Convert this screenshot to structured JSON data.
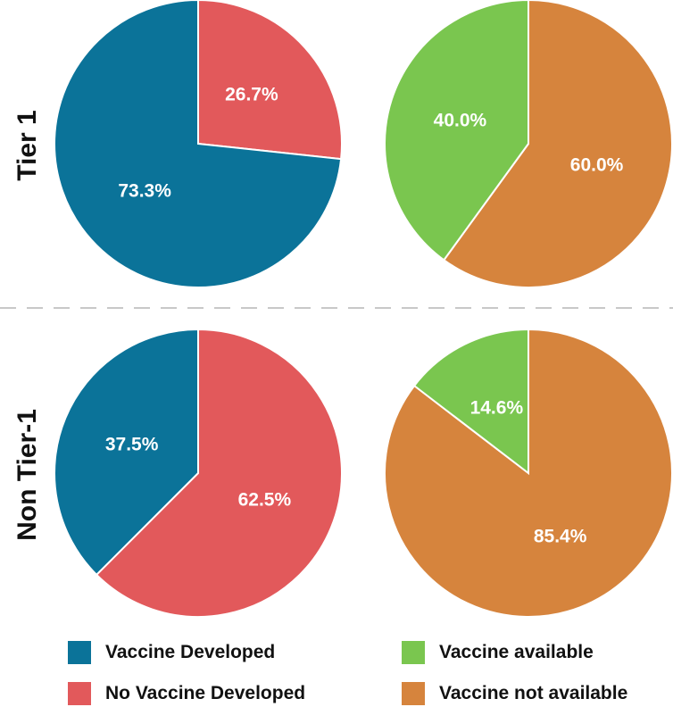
{
  "chart_data": [
    {
      "type": "pie",
      "row": "Tier 1",
      "slices": [
        {
          "label": "Vaccine Developed",
          "value": 73.3,
          "text": "73.3%",
          "color": "#0b7399"
        },
        {
          "label": "No Vaccine Developed",
          "value": 26.7,
          "text": "26.7%",
          "color": "#e2595b"
        }
      ]
    },
    {
      "type": "pie",
      "row": "Tier 1",
      "slices": [
        {
          "label": "Vaccine available",
          "value": 40.0,
          "text": "40.0%",
          "color": "#7ac64f"
        },
        {
          "label": "Vaccine not available",
          "value": 60.0,
          "text": "60.0%",
          "color": "#d6843d"
        }
      ]
    },
    {
      "type": "pie",
      "row": "Non Tier-1",
      "slices": [
        {
          "label": "Vaccine Developed",
          "value": 37.5,
          "text": "37.5%",
          "color": "#0b7399"
        },
        {
          "label": "No Vaccine Developed",
          "value": 62.5,
          "text": "62.5%",
          "color": "#e2595b"
        }
      ]
    },
    {
      "type": "pie",
      "row": "Non Tier-1",
      "slices": [
        {
          "label": "Vaccine available",
          "value": 14.6,
          "text": "14.6%",
          "color": "#7ac64f"
        },
        {
          "label": "Vaccine not available",
          "value": 85.4,
          "text": "85.4%",
          "color": "#d6843d"
        }
      ]
    }
  ],
  "row_labels": [
    "Tier 1",
    "Non Tier-1"
  ],
  "legend": [
    {
      "label": "Vaccine Developed",
      "color": "#0b7399"
    },
    {
      "label": "No Vaccine Developed",
      "color": "#e2595b"
    },
    {
      "label": "Vaccine available",
      "color": "#7ac64f"
    },
    {
      "label": "Vaccine not available",
      "color": "#d6843d"
    }
  ]
}
